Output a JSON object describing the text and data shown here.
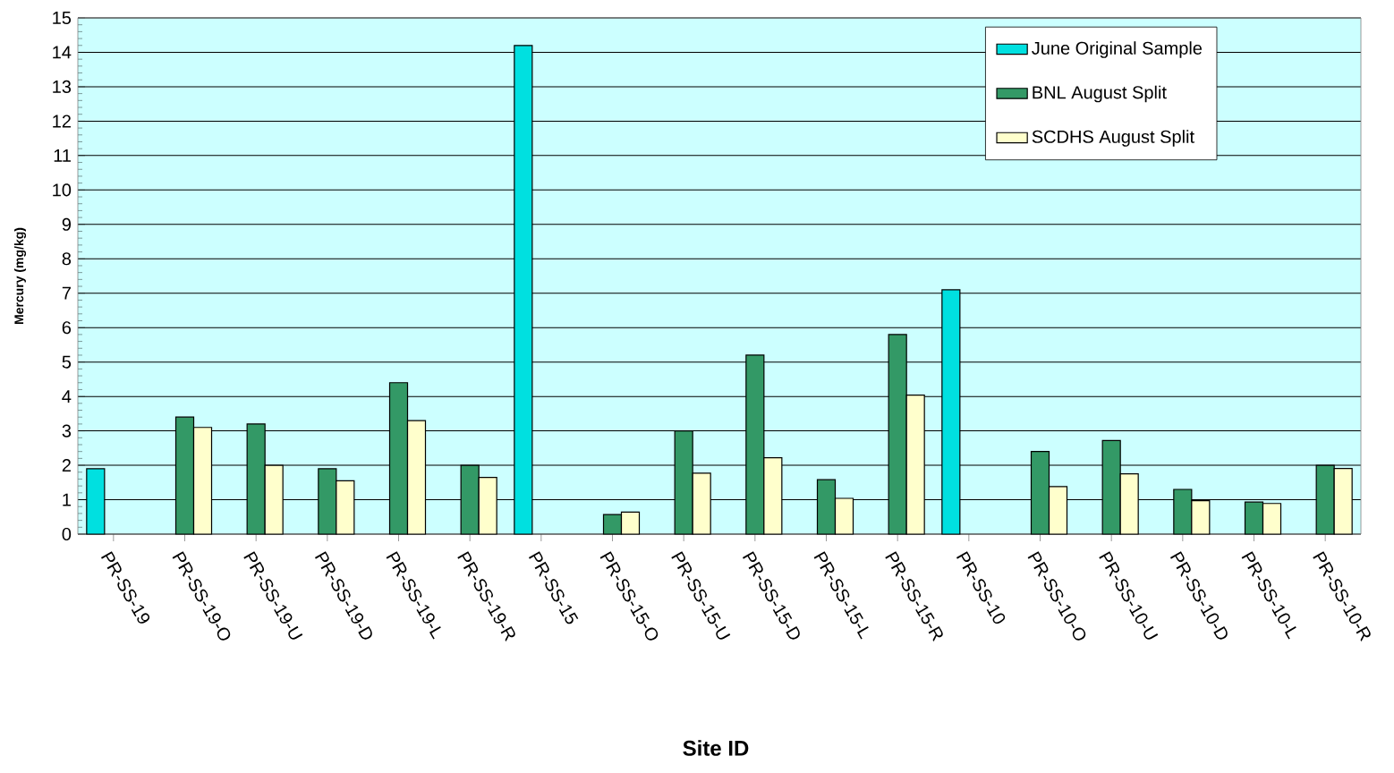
{
  "chart_data": {
    "type": "bar",
    "xlabel": "Site ID",
    "ylabel": "Mercury (mg/kg)",
    "categories": [
      "PR-SS-19",
      "PR-SS-19-O",
      "PR-SS-19-U",
      "PR-SS-19-D",
      "PR-SS-19-L",
      "PR-SS-19-R",
      "PR-SS-15",
      "PR-SS-15-O",
      "PR-SS-15-U",
      "PR-SS-15-D",
      "PR-SS-15-L",
      "PR-SS-15-R",
      "PR-SS-10",
      "PR-SS-10-O",
      "PR-SS-10-U",
      "PR-SS-10-D",
      "PR-SS-10-L",
      "PR-SS-10-R"
    ],
    "series": [
      {
        "name": "June Original Sample",
        "color": "#00e0e0",
        "values": [
          1.9,
          null,
          null,
          null,
          null,
          null,
          14.2,
          null,
          null,
          null,
          null,
          null,
          7.1,
          null,
          null,
          null,
          null,
          null
        ]
      },
      {
        "name": "BNL August Split",
        "color": "#339966",
        "values": [
          null,
          3.4,
          3.2,
          1.9,
          4.4,
          2.0,
          null,
          0.57,
          3.0,
          5.2,
          1.58,
          5.8,
          null,
          2.4,
          2.72,
          1.3,
          0.93,
          2.0
        ]
      },
      {
        "name": "SCDHS August Split",
        "color": "#ffffcc",
        "values": [
          null,
          3.1,
          2.0,
          1.55,
          3.3,
          1.65,
          null,
          0.64,
          1.77,
          2.22,
          1.04,
          4.04,
          null,
          1.38,
          1.75,
          0.97,
          0.89,
          1.91
        ]
      }
    ],
    "ylim": [
      0,
      15
    ],
    "yticks": [
      0,
      1,
      2,
      3,
      4,
      5,
      6,
      7,
      8,
      9,
      10,
      11,
      12,
      13,
      14,
      15
    ],
    "grid": "y",
    "legend": "top right"
  }
}
